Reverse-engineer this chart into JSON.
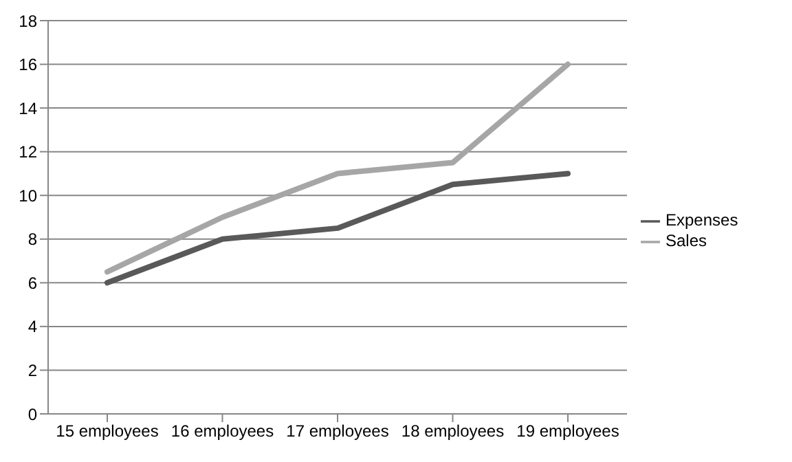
{
  "chart_data": {
    "type": "line",
    "categories": [
      "15 employees",
      "16 employees",
      "17 employees",
      "18 employees",
      "19 employees"
    ],
    "series": [
      {
        "name": "Expenses",
        "color": "#595959",
        "values": [
          6,
          8,
          8.5,
          10.5,
          11
        ]
      },
      {
        "name": "Sales",
        "color": "#a6a6a6",
        "values": [
          6.5,
          9,
          11,
          11.5,
          16
        ]
      }
    ],
    "ylim": [
      0,
      18
    ],
    "yticks": [
      0,
      2,
      4,
      6,
      8,
      10,
      12,
      14,
      16,
      18
    ],
    "grid": "y",
    "legend": "right",
    "marker": "none",
    "line_style": "solid"
  }
}
